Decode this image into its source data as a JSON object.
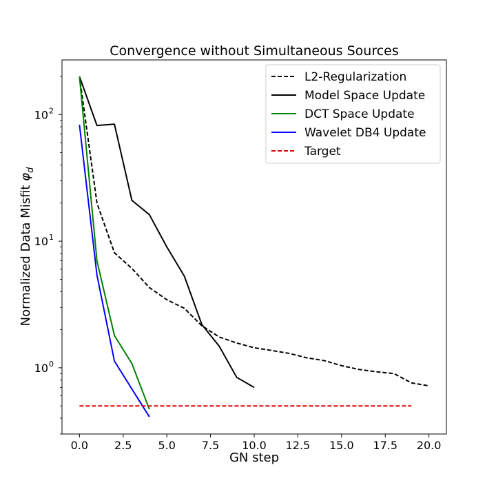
{
  "chart_data": {
    "type": "line",
    "title": "Convergence without Simultaneous Sources",
    "xlabel": "GN step",
    "ylabel_text": "Normalized Data Misfit ",
    "ylabel_symbol": "φ",
    "ylabel_subscript": "d",
    "xlim": [
      -1.0,
      21.0
    ],
    "ylim": [
      0.3,
      270
    ],
    "yscale": "log",
    "grid": false,
    "legend_position": "top-right",
    "x_ticks": [
      {
        "value": 0.0,
        "label": "0.0"
      },
      {
        "value": 2.5,
        "label": "2.5"
      },
      {
        "value": 5.0,
        "label": "5.0"
      },
      {
        "value": 7.5,
        "label": "7.5"
      },
      {
        "value": 10.0,
        "label": "10.0"
      },
      {
        "value": 12.5,
        "label": "12.5"
      },
      {
        "value": 15.0,
        "label": "15.0"
      },
      {
        "value": 17.5,
        "label": "17.5"
      },
      {
        "value": 20.0,
        "label": "20.0"
      }
    ],
    "y_ticks": [
      {
        "value": 1,
        "base": "10",
        "exp": "0"
      },
      {
        "value": 10,
        "base": "10",
        "exp": "1"
      },
      {
        "value": 100,
        "base": "10",
        "exp": "2"
      }
    ],
    "series": [
      {
        "name": "L2-Regularization",
        "color": "#000000",
        "dash": "dashed",
        "x": [
          0,
          1,
          2,
          3,
          4,
          5,
          6,
          7,
          8,
          9,
          10,
          11,
          12,
          13,
          14,
          15,
          16,
          17,
          18,
          19,
          20
        ],
        "y": [
          200,
          20,
          8.1,
          6.1,
          4.3,
          3.45,
          2.95,
          2.15,
          1.75,
          1.57,
          1.44,
          1.37,
          1.3,
          1.2,
          1.14,
          1.04,
          0.97,
          0.93,
          0.9,
          0.76,
          0.72
        ]
      },
      {
        "name": "Model Space Update",
        "color": "#000000",
        "dash": "solid",
        "x": [
          0,
          1,
          2,
          3,
          4,
          5,
          6,
          7,
          8,
          9,
          10
        ],
        "y": [
          200,
          82,
          84,
          21,
          16.2,
          9,
          5.3,
          2.2,
          1.48,
          0.84,
          0.7
        ]
      },
      {
        "name": "DCT Space Update",
        "color": "#008000",
        "dash": "solid",
        "x": [
          0,
          1,
          2,
          3,
          4
        ],
        "y": [
          200,
          7,
          1.8,
          1.08,
          0.47
        ]
      },
      {
        "name": "Wavelet DB4 Update",
        "color": "#0000ff",
        "dash": "solid",
        "x": [
          0,
          1,
          2,
          3,
          4
        ],
        "y": [
          83,
          5.4,
          1.13,
          0.68,
          0.41
        ]
      },
      {
        "name": "Target",
        "color": "#dd0000",
        "dash": "dashed",
        "x": [
          0,
          19
        ],
        "y": [
          0.5,
          0.5
        ]
      }
    ]
  }
}
